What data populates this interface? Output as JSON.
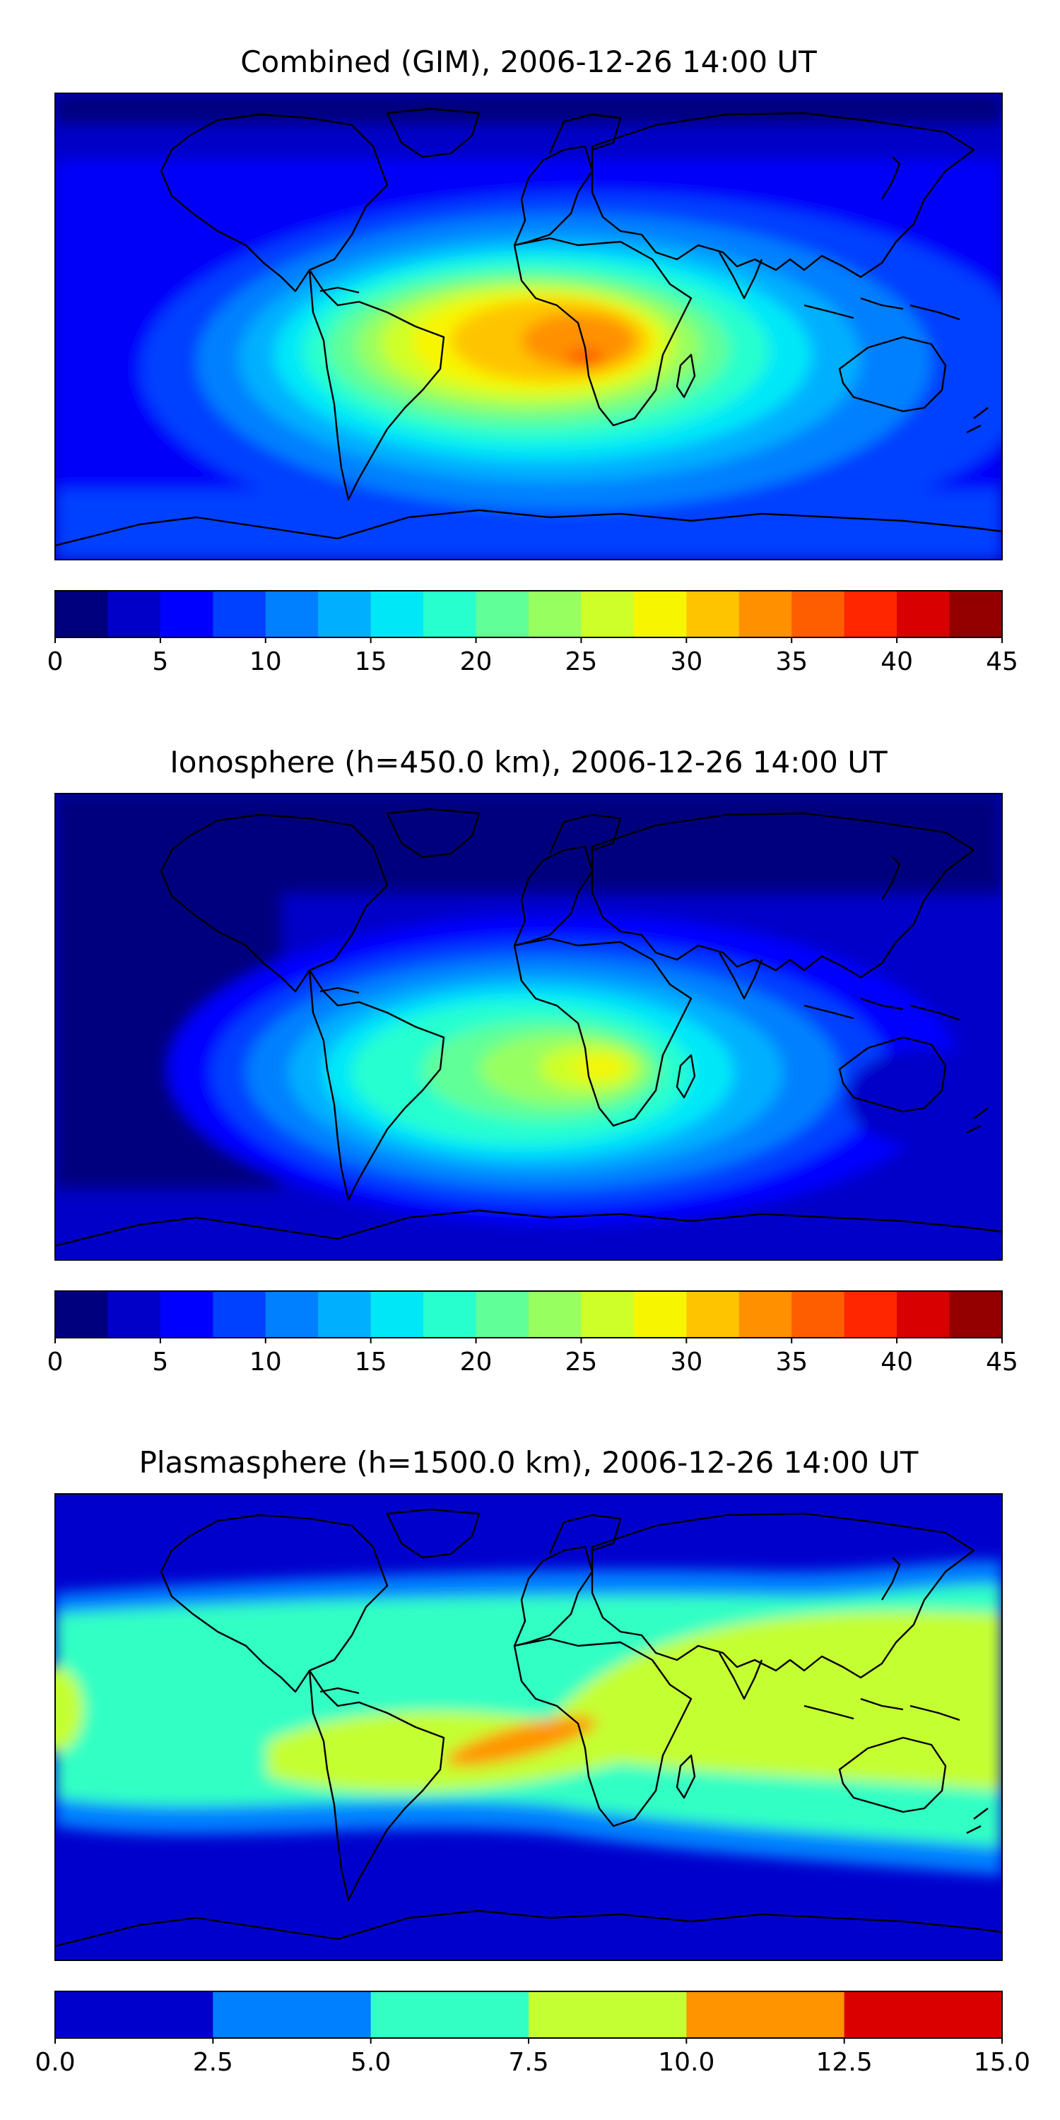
{
  "panels": [
    {
      "title": "Combined (GIM), 2006-12-26 14:00 UT",
      "colorbar": {
        "min": 0,
        "max": 45,
        "step": 2.5,
        "ticks": [
          "0",
          "5",
          "10",
          "15",
          "20",
          "25",
          "30",
          "35",
          "40",
          "45"
        ],
        "colors": [
          "#00007f",
          "#0000c8",
          "#0000ff",
          "#0040ff",
          "#0080ff",
          "#00b0ff",
          "#00e8f8",
          "#28ffcf",
          "#60ff97",
          "#97ff60",
          "#cfff28",
          "#f8f500",
          "#ffc400",
          "#ff9100",
          "#ff5e00",
          "#ff2600",
          "#d80000",
          "#940000"
        ]
      }
    },
    {
      "title": "Ionosphere  (h=450.0 km), 2006-12-26 14:00 UT",
      "colorbar": {
        "min": 0,
        "max": 45,
        "step": 2.5,
        "ticks": [
          "0",
          "5",
          "10",
          "15",
          "20",
          "25",
          "30",
          "35",
          "40",
          "45"
        ],
        "colors": [
          "#00007f",
          "#0000c8",
          "#0000ff",
          "#0040ff",
          "#0080ff",
          "#00b0ff",
          "#00e8f8",
          "#28ffcf",
          "#60ff97",
          "#97ff60",
          "#cfff28",
          "#f8f500",
          "#ffc400",
          "#ff9100",
          "#ff5e00",
          "#ff2600",
          "#d80000",
          "#940000"
        ]
      }
    },
    {
      "title": "Plasmasphere (h=1500.0 km), 2006-12-26 14:00 UT",
      "colorbar": {
        "min": 0,
        "max": 15,
        "step": 2.5,
        "ticks": [
          "0.0",
          "2.5",
          "5.0",
          "7.5",
          "10.0",
          "12.5",
          "15.0"
        ],
        "colors": [
          "#0000cd",
          "#0080ff",
          "#33ffc4",
          "#c4ff33",
          "#ff9400",
          "#db0000"
        ]
      }
    }
  ]
}
